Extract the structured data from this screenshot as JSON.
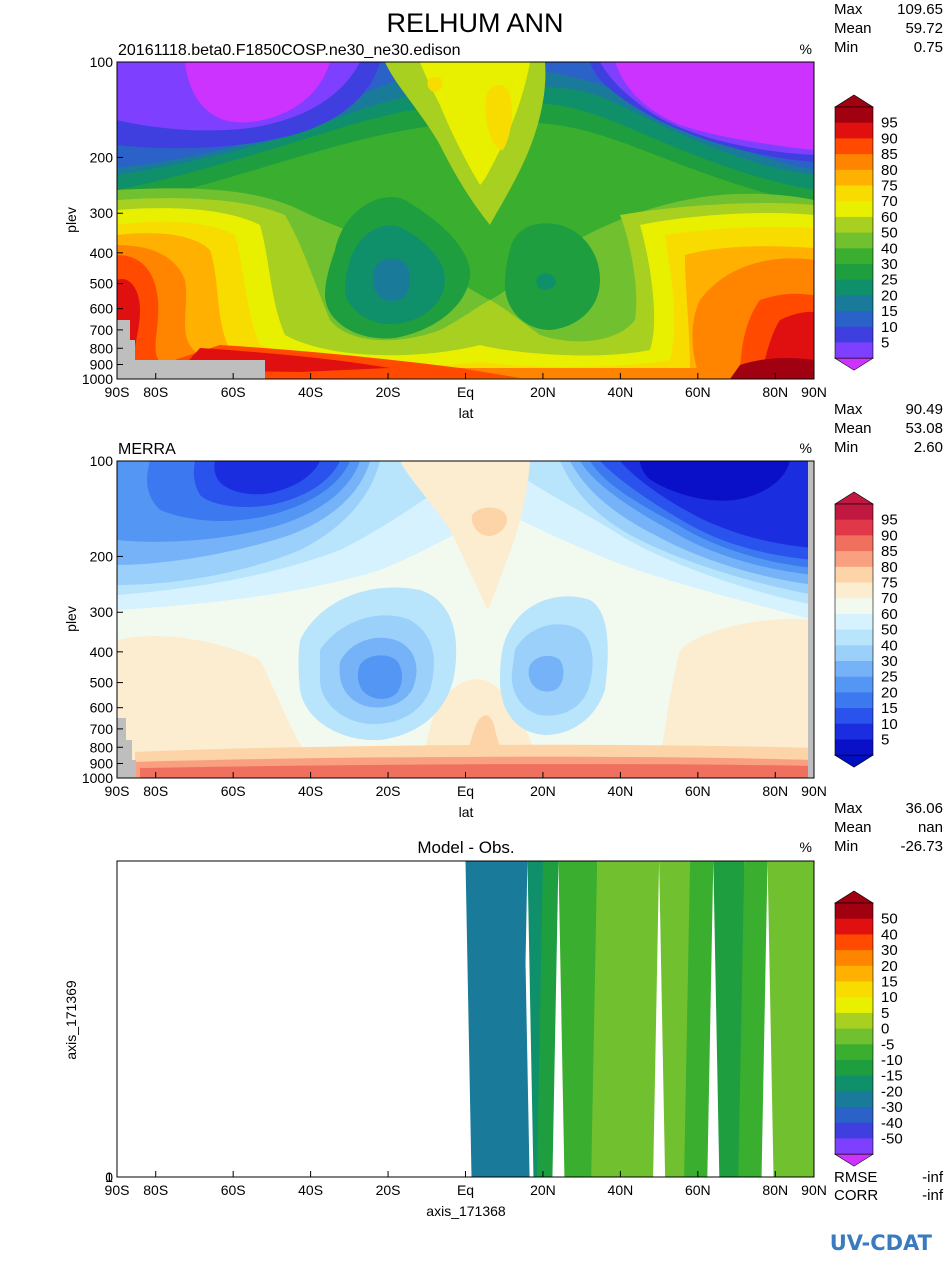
{
  "figure": {
    "title": "RELHUM ANN",
    "logo": "UV-CDAT"
  },
  "chart_data": [
    {
      "type": "heatmap",
      "id": "model",
      "subtitle": "20161118.beta0.F1850COSP.ne30_ne30.edison",
      "units": "%",
      "xlabel": "lat",
      "ylabel": "plev",
      "x_ticks": [
        "90S",
        "80S",
        "60S",
        "40S",
        "20S",
        "Eq",
        "20N",
        "40N",
        "60N",
        "80N",
        "90N"
      ],
      "x_tick_values": [
        -90,
        -80,
        -60,
        -40,
        -20,
        0,
        20,
        40,
        60,
        80,
        90
      ],
      "y_ticks": [
        "100",
        "200",
        "300",
        "400",
        "500",
        "600",
        "700",
        "800",
        "900",
        "1000"
      ],
      "y_tick_values": [
        100,
        200,
        300,
        400,
        500,
        600,
        700,
        800,
        900,
        1000
      ],
      "y_scale": "log",
      "xlim": [
        -90,
        90
      ],
      "ylim": [
        100,
        1000
      ],
      "stats": {
        "max_label": "Max",
        "max": "109.65",
        "mean_label": "Mean",
        "mean": "59.72",
        "min_label": "Min",
        "min": "0.75"
      },
      "colorbar": {
        "levels": [
          "5",
          "10",
          "15",
          "20",
          "25",
          "30",
          "40",
          "50",
          "60",
          "70",
          "75",
          "80",
          "85",
          "90",
          "95"
        ],
        "colors": [
          "#7f3fff",
          "#3f3fe0",
          "#2a62c8",
          "#1a7a9a",
          "#10906a",
          "#1e9e3e",
          "#3aae2e",
          "#70c030",
          "#a8d020",
          "#e8f000",
          "#f8dc00",
          "#ffb000",
          "#ff8400",
          "#ff4a00",
          "#e01010",
          "#a00010"
        ],
        "under_color": "#cc33ff",
        "over_color": "#a00010"
      },
      "contour_features": [
        {
          "desc": "polar stratosphere minimum",
          "lat": -55,
          "plev": 120,
          "value": 2
        },
        {
          "desc": "polar stratosphere minimum",
          "lat": 60,
          "plev": 130,
          "value": 2
        },
        {
          "desc": "subtropical minimum",
          "lat": -20,
          "plev": 500,
          "value": 20
        },
        {
          "desc": "subtropical minimum",
          "lat": 20,
          "plev": 500,
          "value": 28
        },
        {
          "desc": "tropical upper maximum",
          "lat": 8,
          "plev": 130,
          "value": 72
        },
        {
          "desc": "boundary layer maximum",
          "lat": 80,
          "plev": 960,
          "value": 96
        }
      ]
    },
    {
      "type": "heatmap",
      "id": "obs",
      "subtitle": "MERRA",
      "units": "%",
      "xlabel": "lat",
      "ylabel": "plev",
      "x_ticks": [
        "90S",
        "80S",
        "60S",
        "40S",
        "20S",
        "Eq",
        "20N",
        "40N",
        "60N",
        "80N",
        "90N"
      ],
      "x_tick_values": [
        -90,
        -80,
        -60,
        -40,
        -20,
        0,
        20,
        40,
        60,
        80,
        90
      ],
      "y_ticks": [
        "100",
        "200",
        "300",
        "400",
        "500",
        "600",
        "700",
        "800",
        "900",
        "1000"
      ],
      "y_tick_values": [
        100,
        200,
        300,
        400,
        500,
        600,
        700,
        800,
        900,
        1000
      ],
      "y_scale": "log",
      "xlim": [
        -90,
        90
      ],
      "ylim": [
        100,
        1000
      ],
      "stats": {
        "max_label": "Max",
        "max": "90.49",
        "mean_label": "Mean",
        "mean": "53.08",
        "min_label": "Min",
        "min": "2.60"
      },
      "colorbar": {
        "levels": [
          "5",
          "10",
          "15",
          "20",
          "25",
          "30",
          "40",
          "50",
          "60",
          "70",
          "75",
          "80",
          "85",
          "90",
          "95"
        ],
        "colors": [
          "#0a10c8",
          "#1a2ee0",
          "#2a52ec",
          "#3c78f0",
          "#5496f4",
          "#76b2f8",
          "#9ad0fa",
          "#b8e4fc",
          "#d6f2fe",
          "#f2faf0",
          "#fcecd0",
          "#fcd4a8",
          "#f8a080",
          "#f07060",
          "#e03848",
          "#c01840"
        ],
        "under_color": "#0010c0",
        "over_color": "#c01840"
      },
      "contour_features": [
        {
          "desc": "polar stratosphere minimum",
          "lat": -55,
          "plev": 140,
          "value": 8
        },
        {
          "desc": "polar stratosphere minimum",
          "lat": 60,
          "plev": 120,
          "value": 4
        },
        {
          "desc": "subtropical minimum",
          "lat": -20,
          "plev": 480,
          "value": 22
        },
        {
          "desc": "subtropical minimum",
          "lat": 20,
          "plev": 480,
          "value": 25
        },
        {
          "desc": "tropical upper maximum",
          "lat": 5,
          "plev": 160,
          "value": 72
        }
      ]
    },
    {
      "type": "heatmap",
      "id": "diff",
      "title": "Model - Obs.",
      "units": "%",
      "xlabel": "axis_171368",
      "ylabel": "axis_171369",
      "x_ticks": [
        "90S",
        "80S",
        "60S",
        "40S",
        "20S",
        "Eq",
        "20N",
        "40N",
        "60N",
        "80N",
        "90N"
      ],
      "x_tick_values": [
        -90,
        -80,
        -60,
        -40,
        -20,
        0,
        20,
        40,
        60,
        80,
        90
      ],
      "y_ticks": [
        "1",
        "0"
      ],
      "stats": {
        "max_label": "Max",
        "max": "36.06",
        "mean_label": "Mean",
        "mean": "nan",
        "min_label": "Min",
        "min": "-26.73"
      },
      "metrics": {
        "rmse_label": "RMSE",
        "rmse": "-inf",
        "corr_label": "CORR",
        "corr": "-inf"
      },
      "colorbar": {
        "levels": [
          "-50",
          "-40",
          "-30",
          "-20",
          "-15",
          "-10",
          "-5",
          "0",
          "5",
          "10",
          "15",
          "20",
          "30",
          "40",
          "50"
        ],
        "colors": [
          "#7f3fff",
          "#3f3fe0",
          "#2a62c8",
          "#1a7a9a",
          "#10906a",
          "#1e9e3e",
          "#3aae2e",
          "#70c030",
          "#a8d020",
          "#e8f000",
          "#f8dc00",
          "#ffb000",
          "#ff8400",
          "#ff4a00",
          "#e01010",
          "#a00010"
        ],
        "under_color": "#cc33ff",
        "over_color": "#a00010"
      },
      "lat_profile": {
        "lat": [
          0,
          15,
          16,
          20,
          24,
          34,
          50,
          58,
          64,
          72,
          78,
          90
        ],
        "value": [
          -22,
          -22,
          -17,
          -12,
          -7,
          -2,
          -2,
          -7,
          -12,
          -7,
          -2,
          -2
        ]
      }
    }
  ]
}
